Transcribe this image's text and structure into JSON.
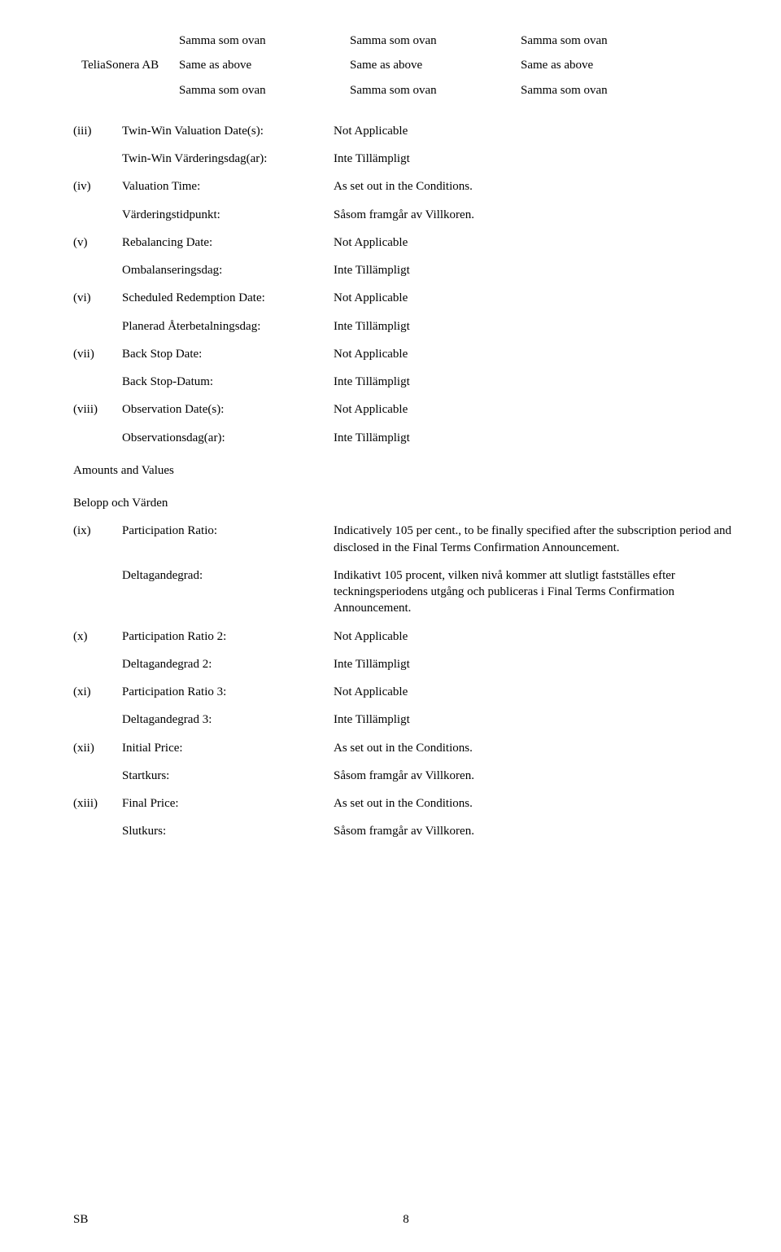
{
  "top": {
    "r1": {
      "c1": "",
      "c2": "Samma som ovan",
      "c3": "Samma som ovan",
      "c4": "Samma som ovan"
    },
    "r2": {
      "c1": "TeliaSonera AB",
      "c2": "Same as above",
      "c3": "Same as above",
      "c4": "Same as above"
    },
    "r3": {
      "c1": "",
      "c2": "Samma som ovan",
      "c3": "Samma som ovan",
      "c4": "Samma som ovan"
    }
  },
  "rows": {
    "iii": {
      "roman": "(iii)",
      "term": "Twin-Win Valuation Date(s):",
      "val": "Not Applicable"
    },
    "iiia": {
      "roman": "",
      "term": "Twin-Win Värderingsdag(ar):",
      "val": "Inte Tillämpligt"
    },
    "iv": {
      "roman": "(iv)",
      "term": "Valuation Time:",
      "val": "As set out in the Conditions."
    },
    "iva": {
      "roman": "",
      "term": "Värderingstidpunkt:",
      "val": "Såsom framgår av Villkoren."
    },
    "v": {
      "roman": "(v)",
      "term": "Rebalancing Date:",
      "val": "Not Applicable"
    },
    "va": {
      "roman": "",
      "term": "Ombalanseringsdag:",
      "val": "Inte Tillämpligt"
    },
    "vi": {
      "roman": "(vi)",
      "term": "Scheduled Redemption Date:",
      "val": "Not Applicable"
    },
    "via": {
      "roman": "",
      "term": "Planerad Återbetalningsdag:",
      "val": "Inte Tillämpligt"
    },
    "vii": {
      "roman": "(vii)",
      "term": "Back Stop Date:",
      "val": "Not Applicable"
    },
    "viia": {
      "roman": "",
      "term": "Back Stop-Datum:",
      "val": "Inte Tillämpligt"
    },
    "viii": {
      "roman": "(viii)",
      "term": "Observation Date(s):",
      "val": "Not Applicable"
    },
    "viiia": {
      "roman": "",
      "term": "Observationsdag(ar):",
      "val": "Inte Tillämpligt"
    },
    "ix": {
      "roman": "(ix)",
      "term": "Participation Ratio:",
      "val": "Indicatively 105 per cent., to be finally specified after the subscription period and disclosed in the Final Terms Confirmation Announcement."
    },
    "ixa": {
      "roman": "",
      "term": "Deltagandegrad:",
      "val": "Indikativt 105 procent, vilken nivå kommer att slutligt fastställes efter teckningsperiodens utgång och publiceras i Final Terms Confirmation Announcement."
    },
    "x": {
      "roman": "(x)",
      "term": "Participation Ratio 2:",
      "val": "Not Applicable"
    },
    "xa": {
      "roman": "",
      "term": "Deltagandegrad 2:",
      "val": "Inte Tillämpligt"
    },
    "xi": {
      "roman": "(xi)",
      "term": "Participation Ratio 3:",
      "val": "Not Applicable"
    },
    "xia": {
      "roman": "",
      "term": "Deltagandegrad 3:",
      "val": "Inte Tillämpligt"
    },
    "xii": {
      "roman": "(xii)",
      "term": "Initial Price:",
      "val": "As set out in the Conditions."
    },
    "xiia": {
      "roman": "",
      "term": "Startkurs:",
      "val": "Såsom framgår av Villkoren."
    },
    "xiii": {
      "roman": "(xiii)",
      "term": "Final Price:",
      "val": "As set out in the Conditions."
    },
    "xiiia": {
      "roman": "",
      "term": "Slutkurs:",
      "val": "Såsom framgår av Villkoren."
    }
  },
  "sections": {
    "amounts": "Amounts and Values",
    "belopp": "Belopp och Värden"
  },
  "footer": {
    "left": "SB",
    "page": "8"
  }
}
